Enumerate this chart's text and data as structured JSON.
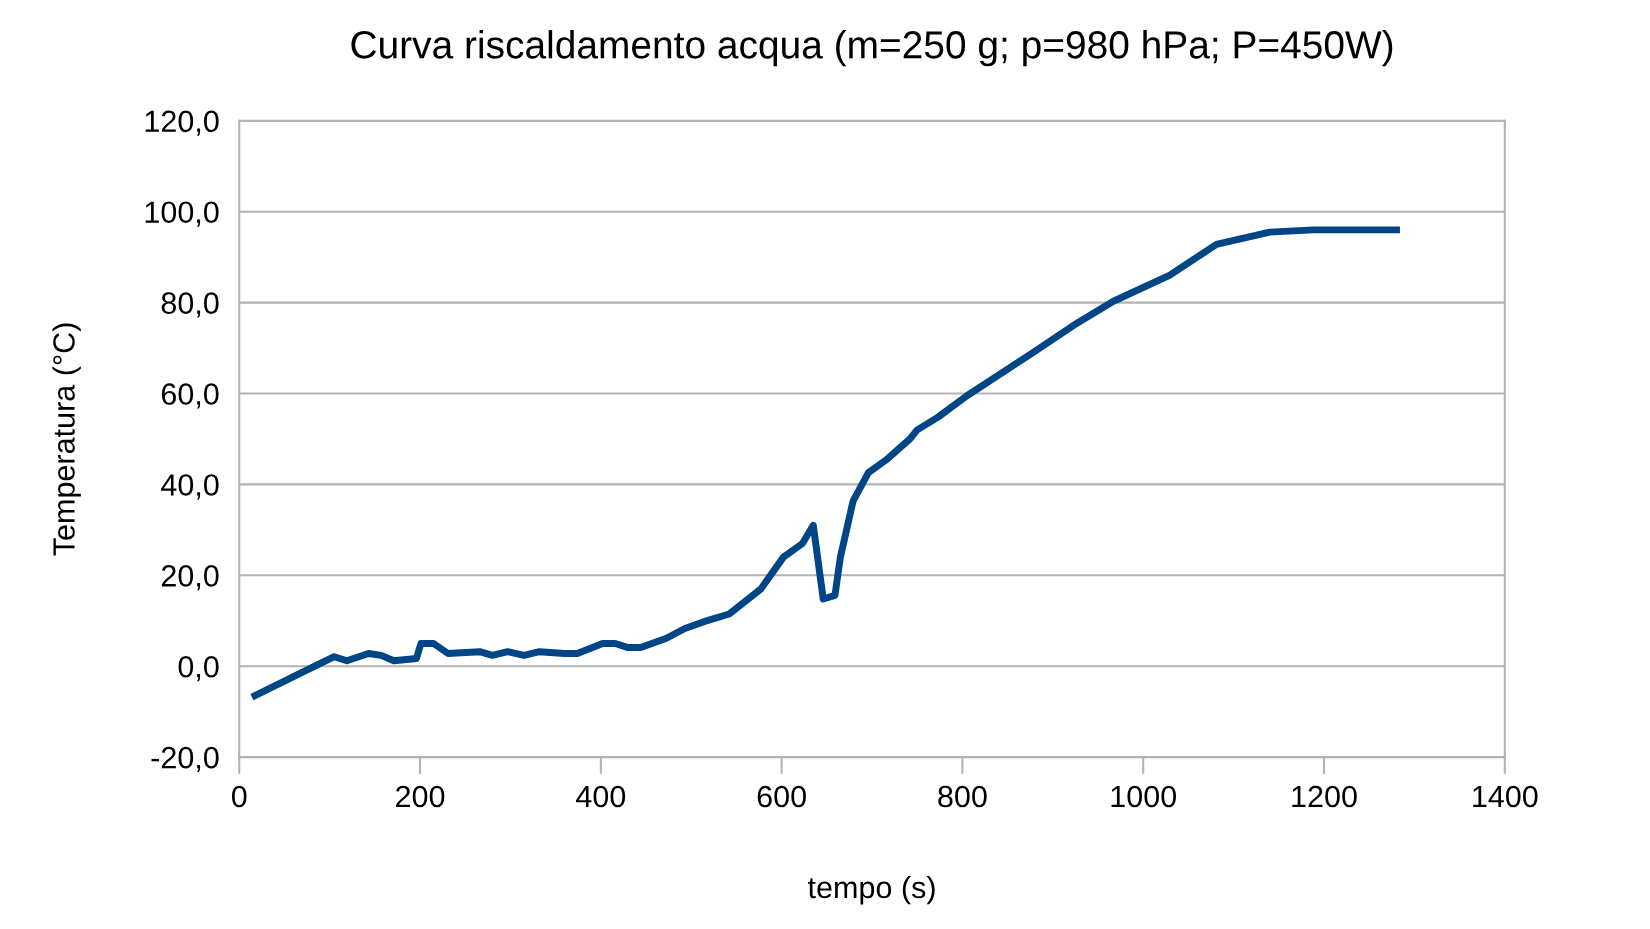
{
  "chart_data": {
    "type": "line",
    "title": "Curva riscaldamento acqua (m=250 g; p=980 hPa; P=450W)",
    "xlabel": "tempo (s)",
    "ylabel": "Temperatura (°C)",
    "xlim": [
      0,
      1400
    ],
    "xticks": [
      0,
      200,
      400,
      600,
      800,
      1000,
      1200,
      1400
    ],
    "ylim": [
      -20,
      120
    ],
    "yticks": [
      {
        "value": -20,
        "label": "-20,0"
      },
      {
        "value": 0,
        "label": "0,0"
      },
      {
        "value": 20,
        "label": "20,0"
      },
      {
        "value": 40,
        "label": "40,0"
      },
      {
        "value": 60,
        "label": "60,0"
      },
      {
        "value": 80,
        "label": "80,0"
      },
      {
        "value": 100,
        "label": "100,0"
      },
      {
        "value": 120,
        "label": "120,0"
      }
    ],
    "grid": "y",
    "legend": false,
    "marker": "none",
    "line_style": "solid",
    "series": [
      {
        "color": "#004586",
        "x": [
          14,
          60,
          105,
          119,
          143,
          157,
          171,
          196,
          201,
          215,
          231,
          266,
          280,
          297,
          315,
          332,
          360,
          374,
          402,
          416,
          430,
          444,
          472,
          493,
          514,
          542,
          577,
          602,
          623,
          635,
          646,
          659,
          665,
          679,
          696,
          717,
          742,
          750,
          773,
          805,
          878,
          923,
          967,
          1029,
          1081,
          1140,
          1188,
          1284
        ],
        "values": [
          -6.8,
          -2.3,
          2.1,
          1.2,
          2.8,
          2.4,
          1.2,
          1.7,
          5.0,
          5.0,
          2.8,
          3.2,
          2.4,
          3.2,
          2.4,
          3.2,
          2.8,
          2.8,
          5.0,
          5.0,
          4.1,
          4.1,
          6.1,
          8.3,
          9.8,
          11.5,
          17,
          24,
          27,
          31,
          14.8,
          15.6,
          24,
          36.3,
          42.6,
          45.6,
          50,
          52,
          54.8,
          59.5,
          69,
          75,
          80.3,
          86,
          92.8,
          95.5,
          96,
          96
        ]
      }
    ]
  }
}
